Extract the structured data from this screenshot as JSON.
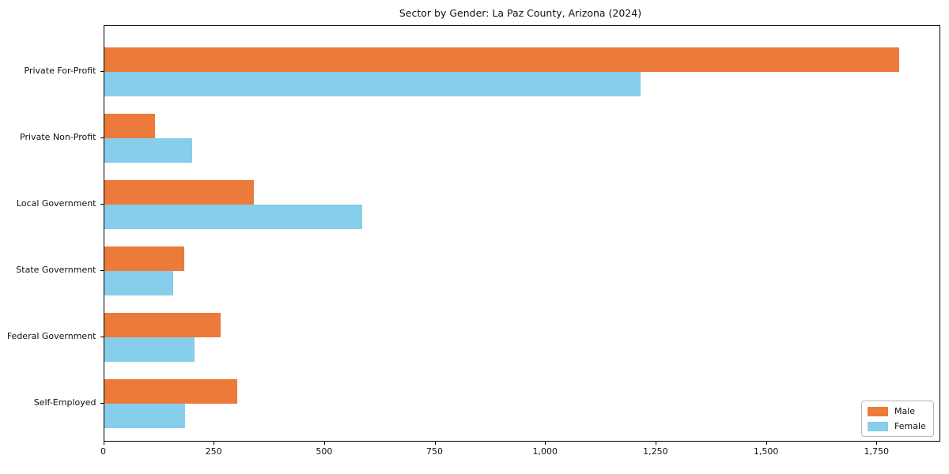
{
  "title": "Sector by Gender: La Paz County, Arizona (2024)",
  "chart_data": {
    "type": "bar",
    "orientation": "horizontal",
    "title": "Sector by Gender: La Paz County, Arizona (2024)",
    "categories": [
      "Private For-Profit",
      "Private Non-Profit",
      "Local Government",
      "State Government",
      "Federal Government",
      "Self-Employed"
    ],
    "series": [
      {
        "name": "Male",
        "color": "#ec7a3b",
        "values": [
          1800,
          115,
          340,
          182,
          264,
          302
        ]
      },
      {
        "name": "Female",
        "color": "#87ceeb",
        "values": [
          1215,
          200,
          585,
          156,
          205,
          183
        ]
      }
    ],
    "xlabel": "",
    "ylabel": "",
    "xlim": [
      0,
      1890
    ],
    "x_ticks": [
      0,
      250,
      500,
      750,
      1000,
      1250,
      1500,
      1750
    ],
    "x_tick_labels": [
      "0",
      "250",
      "500",
      "750",
      "1,000",
      "1,250",
      "1,500",
      "1,750"
    ],
    "grid": false,
    "legend": {
      "position": "lower right",
      "entries": [
        "Male",
        "Female"
      ]
    }
  }
}
